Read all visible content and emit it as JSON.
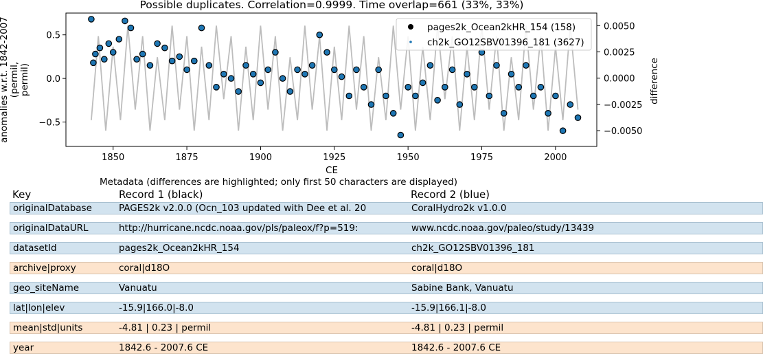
{
  "chart_data": {
    "type": "scatter",
    "title": "Possible duplicates. Correlation=0.9999. Time overlap=661 (33%, 33%)",
    "xlabel": "CE",
    "ylabel": "anomalies w.r.t. 1842-2007 (permil, permil)",
    "ylabel_lines": [
      "anomalies w.r.t. 1842-2007",
      "(permil,",
      "permil)"
    ],
    "y2label": "difference",
    "xlim": [
      1834,
      2014
    ],
    "ylim": [
      -0.78,
      0.75
    ],
    "y2lim": [
      -0.0065,
      0.0062
    ],
    "xticks": [
      1850,
      1875,
      1900,
      1925,
      1950,
      1975,
      2000
    ],
    "yticks": [
      -0.5,
      0.0,
      0.5
    ],
    "ytick_labels": [
      "−0.5",
      "0.0",
      "0.5"
    ],
    "y2ticks": [
      -0.005,
      -0.0025,
      0.0,
      0.0025,
      0.005
    ],
    "y2tick_labels": [
      "−0.0050",
      "−0.0025",
      "0.0000",
      "0.0025",
      "0.0050"
    ],
    "legend_position": "top-right",
    "series": [
      {
        "name": "pages2k_Ocean2kHR_154 (158)",
        "color": "#000000",
        "marker": "large-dot",
        "x": [
          1842.6,
          1843.3,
          1844.0,
          1845.5,
          1847.0,
          1848.5,
          1850.0,
          1852.0,
          1854.0,
          1856.0,
          1858.0,
          1860.0,
          1862.5,
          1865.0,
          1867.5,
          1870.0,
          1872.5,
          1875.0,
          1877.5,
          1880.0,
          1882.5,
          1885.0,
          1887.5,
          1890.0,
          1892.5,
          1895.0,
          1897.5,
          1900.0,
          1902.5,
          1905.0,
          1907.5,
          1910.0,
          1912.5,
          1915.0,
          1917.5,
          1920.0,
          1922.5,
          1925.0,
          1927.5,
          1930.0,
          1932.5,
          1935.0,
          1937.5,
          1940.0,
          1942.5,
          1945.0,
          1947.5,
          1950.0,
          1952.5,
          1955.0,
          1957.5,
          1960.0,
          1962.5,
          1965.0,
          1967.5,
          1970.0,
          1972.5,
          1975.0,
          1977.5,
          1980.0,
          1982.5,
          1985.0,
          1987.5,
          1990.0,
          1992.5,
          1995.0,
          1997.5,
          2000.0,
          2002.5,
          2005.0,
          2007.6
        ],
        "y": [
          0.68,
          0.18,
          0.28,
          0.35,
          0.22,
          0.4,
          0.3,
          0.45,
          0.66,
          0.58,
          0.22,
          0.28,
          0.15,
          0.4,
          0.35,
          0.2,
          0.25,
          0.1,
          0.2,
          0.58,
          0.15,
          -0.1,
          0.05,
          0.0,
          -0.15,
          0.15,
          0.05,
          -0.05,
          0.1,
          0.3,
          0.0,
          -0.15,
          0.1,
          0.05,
          0.15,
          0.5,
          0.3,
          0.1,
          0.02,
          -0.2,
          0.1,
          -0.1,
          -0.3,
          0.1,
          -0.2,
          -0.4,
          -0.65,
          -0.1,
          -0.2,
          -0.05,
          0.15,
          -0.25,
          -0.1,
          0.1,
          -0.3,
          0.05,
          -0.1,
          0.3,
          -0.2,
          0.15,
          -0.4,
          0.05,
          -0.1,
          0.15,
          -0.2,
          -0.1,
          -0.4,
          -0.2,
          -0.6,
          -0.3,
          -0.45
        ]
      },
      {
        "name": "ch2k_GO12SBV01396_181 (3627)",
        "color": "#1f77b4",
        "marker": "small-dot",
        "x": [
          1842.6,
          1843.3,
          1844.0,
          1845.5,
          1847.0,
          1848.5,
          1850.0,
          1852.0,
          1854.0,
          1856.0,
          1858.0,
          1860.0,
          1862.5,
          1865.0,
          1867.5,
          1870.0,
          1872.5,
          1875.0,
          1877.5,
          1880.0,
          1882.5,
          1885.0,
          1887.5,
          1890.0,
          1892.5,
          1895.0,
          1897.5,
          1900.0,
          1902.5,
          1905.0,
          1907.5,
          1910.0,
          1912.5,
          1915.0,
          1917.5,
          1920.0,
          1922.5,
          1925.0,
          1927.5,
          1930.0,
          1932.5,
          1935.0,
          1937.5,
          1940.0,
          1942.5,
          1945.0,
          1947.5,
          1950.0,
          1952.5,
          1955.0,
          1957.5,
          1960.0,
          1962.5,
          1965.0,
          1967.5,
          1970.0,
          1972.5,
          1975.0,
          1977.5,
          1980.0,
          1982.5,
          1985.0,
          1987.5,
          1990.0,
          1992.5,
          1995.0,
          1997.5,
          2000.0,
          2002.5,
          2005.0,
          2007.6
        ],
        "y": [
          0.68,
          0.18,
          0.28,
          0.35,
          0.22,
          0.4,
          0.3,
          0.45,
          0.66,
          0.58,
          0.22,
          0.28,
          0.15,
          0.4,
          0.35,
          0.2,
          0.25,
          0.1,
          0.2,
          0.58,
          0.15,
          -0.1,
          0.05,
          0.0,
          -0.15,
          0.15,
          0.05,
          -0.05,
          0.1,
          0.3,
          0.0,
          -0.15,
          0.1,
          0.05,
          0.15,
          0.5,
          0.3,
          0.1,
          0.02,
          -0.2,
          0.1,
          -0.1,
          -0.3,
          0.1,
          -0.2,
          -0.4,
          -0.65,
          -0.1,
          -0.2,
          -0.05,
          0.15,
          -0.25,
          -0.1,
          0.1,
          -0.3,
          0.05,
          -0.1,
          0.3,
          -0.2,
          0.15,
          -0.4,
          0.05,
          -0.1,
          0.15,
          -0.2,
          -0.1,
          -0.4,
          -0.2,
          -0.6,
          -0.3,
          -0.45
        ]
      },
      {
        "name": "difference",
        "color": "#bdbdbd",
        "marker": "line",
        "axis": "right",
        "x": [
          1842.6,
          1845.0,
          1847.5,
          1850.0,
          1852.5,
          1855.0,
          1857.5,
          1860.0,
          1862.5,
          1865.0,
          1867.5,
          1870.0,
          1872.5,
          1875.0,
          1877.5,
          1880.0,
          1882.5,
          1885.0,
          1887.5,
          1890.0,
          1892.5,
          1895.0,
          1897.5,
          1900.0,
          1902.5,
          1905.0,
          1907.5,
          1910.0,
          1912.5,
          1915.0,
          1917.5,
          1920.0,
          1922.5,
          1925.0,
          1927.5,
          1930.0,
          1932.5,
          1935.0,
          1937.5,
          1940.0,
          1942.5,
          1945.0,
          1947.5,
          1950.0,
          1952.5,
          1955.0,
          1957.5,
          1960.0,
          1962.5,
          1965.0,
          1967.5,
          1970.0,
          1972.5,
          1975.0,
          1977.5,
          1980.0,
          1982.5,
          1985.0,
          1987.5,
          1990.0,
          1992.5,
          1995.0,
          1997.5,
          2000.0,
          2002.5,
          2005.0,
          2007.6
        ],
        "y": [
          -0.004,
          0.004,
          -0.005,
          0.003,
          -0.004,
          0.005,
          -0.003,
          0.004,
          -0.005,
          0.002,
          -0.004,
          0.005,
          -0.003,
          0.004,
          -0.005,
          0.003,
          -0.004,
          0.005,
          -0.002,
          0.004,
          -0.005,
          0.003,
          -0.004,
          0.005,
          -0.003,
          0.004,
          -0.005,
          0.002,
          -0.004,
          0.005,
          -0.003,
          0.004,
          -0.005,
          0.003,
          -0.004,
          0.005,
          -0.003,
          0.004,
          -0.005,
          0.002,
          -0.004,
          0.005,
          -0.003,
          0.004,
          -0.005,
          0.003,
          -0.004,
          0.005,
          -0.002,
          0.004,
          -0.005,
          0.003,
          -0.004,
          0.005,
          -0.003,
          0.004,
          -0.005,
          0.002,
          -0.004,
          0.005,
          -0.003,
          0.004,
          -0.005,
          0.003,
          -0.004,
          0.005,
          -0.003
        ]
      }
    ]
  },
  "metadata": {
    "caption": "Metadata (differences are highlighted; only first 50 characters are displayed)",
    "headers": [
      "Key",
      "Record 1 (black)",
      "Record 2 (blue)"
    ],
    "rows": [
      {
        "key": "originalDatabase",
        "r1": "PAGES2k v2.0.0 (Ocn_103 updated with Dee et al. 20",
        "r2": "CoralHydro2k v1.0.0",
        "differs": true
      },
      {
        "key": "originalDataURL",
        "r1": "http://hurricane.ncdc.noaa.gov/pls/paleox/f?p=519:",
        "r2": "www.ncdc.noaa.gov/paleo/study/13439",
        "differs": true
      },
      {
        "key": "datasetId",
        "r1": "pages2k_Ocean2kHR_154",
        "r2": "ch2k_GO12SBV01396_181",
        "differs": true
      },
      {
        "key": "archive|proxy",
        "r1": "coral|d18O",
        "r2": "coral|d18O",
        "differs": false
      },
      {
        "key": "geo_siteName",
        "r1": "Vanuatu",
        "r2": "Sabine Bank, Vanuatu",
        "differs": true
      },
      {
        "key": "lat|lon|elev",
        "r1": "-15.9|166.0|-8.0",
        "r2": "-15.9|166.1|-8.0",
        "differs": true
      },
      {
        "key": "mean|std|units",
        "r1": "-4.81 | 0.23 | permil",
        "r2": "-4.81 | 0.23 | permil",
        "differs": false
      },
      {
        "key": "year",
        "r1": "1842.6 - 2007.6 CE",
        "r2": "1842.6 - 2007.6 CE",
        "differs": false
      }
    ]
  }
}
